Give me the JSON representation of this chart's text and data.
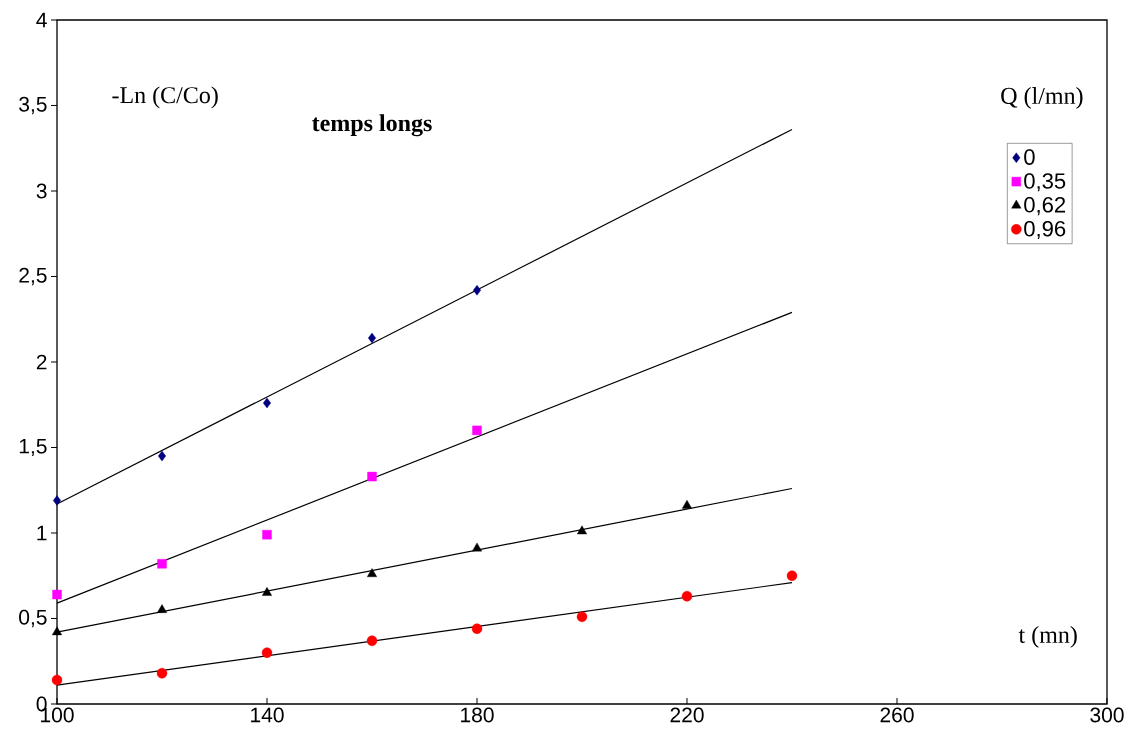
{
  "chart_data": {
    "type": "scatter",
    "title": "**temps longs**",
    "xlabel": "t (mn)",
    "ylabel": "-Ln (C/Co)",
    "legend_title": "Q (l/mn)",
    "xlim": [
      100,
      300
    ],
    "ylim": [
      0,
      4
    ],
    "xticks": [
      100,
      140,
      180,
      220,
      260,
      300
    ],
    "yticks": [
      0,
      {
        "value": 0.5,
        "label": "0,5"
      },
      1,
      {
        "value": 1.5,
        "label": "1,5"
      },
      2,
      {
        "value": 2.5,
        "label": "2,5"
      },
      3,
      {
        "value": 3.5,
        "label": "3,5"
      },
      4
    ],
    "legend": "top right",
    "series": [
      {
        "name": "0",
        "color": "#000080",
        "marker": "diamond",
        "x": [
          100,
          120,
          140,
          160,
          180
        ],
        "values": [
          1.19,
          1.45,
          1.76,
          2.14,
          2.42
        ]
      },
      {
        "name": "0,35",
        "color": "#ff00ff",
        "marker": "square",
        "x": [
          100,
          120,
          140,
          160,
          180
        ],
        "values": [
          0.64,
          0.82,
          0.99,
          1.33,
          1.6
        ]
      },
      {
        "name": "0,62",
        "color": "#000000",
        "marker": "triangle",
        "x": [
          100,
          120,
          140,
          160,
          180,
          200,
          220
        ],
        "values": [
          0.42,
          0.55,
          0.65,
          0.76,
          0.91,
          1.01,
          1.16
        ]
      },
      {
        "name": "0,96",
        "color": "#ff0000",
        "marker": "circle",
        "x": [
          100,
          120,
          140,
          160,
          180,
          200,
          220,
          240
        ],
        "values": [
          0.14,
          0.18,
          0.3,
          0.37,
          0.44,
          0.51,
          0.63,
          0.75
        ]
      },
      {
        "type": "line",
        "color": "#000000",
        "marker": "none",
        "x": [
          100,
          240
        ],
        "values": [
          1.17,
          3.36
        ]
      },
      {
        "type": "line",
        "color": "#000000",
        "marker": "none",
        "x": [
          100,
          240
        ],
        "values": [
          0.59,
          2.29
        ]
      },
      {
        "type": "line",
        "color": "#000000",
        "marker": "none",
        "x": [
          100,
          240
        ],
        "values": [
          0.42,
          1.26
        ]
      },
      {
        "type": "line",
        "color": "#000000",
        "marker": "none",
        "x": [
          100,
          240
        ],
        "values": [
          0.11,
          0.71
        ]
      }
    ]
  }
}
